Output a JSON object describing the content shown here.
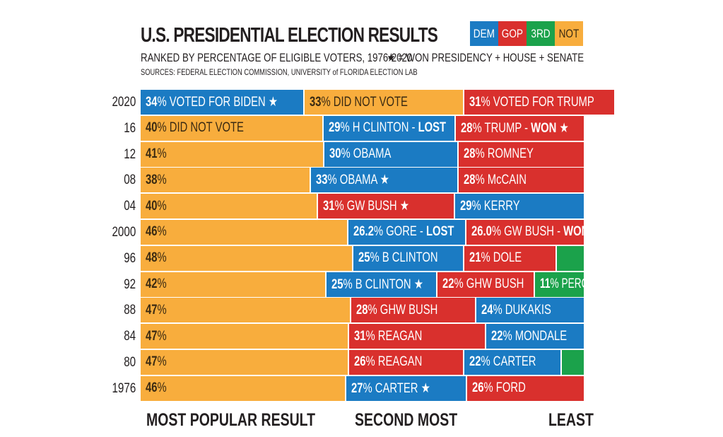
{
  "title": "U.S. PRESIDENTIAL ELECTION RESULTS",
  "subtitle": "RANKED BY PERCENTAGE OF ELIGIBLE VOTERS, 1976-2020",
  "sources": "SOURCES: FEDERAL ELECTION COMMISSION, UNIVERSITY of FLORIDA ELECTION LAB",
  "legend": [
    {
      "key": "DEM",
      "label": "DEM",
      "color": "#1b7bc3"
    },
    {
      "key": "GOP",
      "label": "GOP",
      "color": "#d9302d"
    },
    {
      "key": "3RD",
      "label": "3RD",
      "color": "#1ba24b"
    },
    {
      "key": "NOT",
      "label": "NOT",
      "color": "#f8ad3d"
    }
  ],
  "star_note": "★ = WON PRESIDENCY + HOUSE + SENATE",
  "footer": {
    "first": "MOST POPULAR RESULT",
    "second": "SECOND MOST",
    "least": "LEAST"
  },
  "chart_data": {
    "type": "bar",
    "orientation": "horizontal-stacked",
    "unit": "% of eligible voters",
    "rows": [
      {
        "year": "2020",
        "segments": [
          {
            "party": "DEM",
            "pct": "34",
            "text": "VOTED FOR BIDEN",
            "star": true
          },
          {
            "party": "NOT",
            "pct": "33",
            "text": "DID NOT VOTE"
          },
          {
            "party": "GOP",
            "pct": "31",
            "text": "VOTED FOR TRUMP"
          }
        ]
      },
      {
        "year": "16",
        "segments": [
          {
            "party": "NOT",
            "pct": "40",
            "text": "DID NOT VOTE"
          },
          {
            "party": "DEM",
            "pct": "29",
            "text": "H CLINTON - ",
            "suffix": "LOST"
          },
          {
            "party": "GOP",
            "pct": "28",
            "text": "TRUMP - ",
            "suffix": "WON",
            "star": true
          }
        ]
      },
      {
        "year": "12",
        "segments": [
          {
            "party": "NOT",
            "pct": "41",
            "text": ""
          },
          {
            "party": "DEM",
            "pct": "30",
            "text": "OBAMA"
          },
          {
            "party": "GOP",
            "pct": "28",
            "text": "ROMNEY"
          }
        ]
      },
      {
        "year": "08",
        "segments": [
          {
            "party": "NOT",
            "pct": "38",
            "text": ""
          },
          {
            "party": "DEM",
            "pct": "33",
            "text": "OBAMA",
            "star": true
          },
          {
            "party": "GOP",
            "pct": "28",
            "text": "McCAIN"
          }
        ]
      },
      {
        "year": "04",
        "segments": [
          {
            "party": "NOT",
            "pct": "40",
            "text": ""
          },
          {
            "party": "GOP",
            "pct": "31",
            "text": "GW BUSH",
            "star": true
          },
          {
            "party": "DEM",
            "pct": "29",
            "text": "KERRY"
          }
        ]
      },
      {
        "year": "2000",
        "segments": [
          {
            "party": "NOT",
            "pct": "46",
            "text": ""
          },
          {
            "party": "DEM",
            "pct": "26.2",
            "text": "GORE - ",
            "suffix": "LOST"
          },
          {
            "party": "GOP",
            "pct": "26.0",
            "text": "GW BUSH - ",
            "suffix": "WON"
          }
        ]
      },
      {
        "year": "96",
        "segments": [
          {
            "party": "NOT",
            "pct": "48",
            "text": ""
          },
          {
            "party": "DEM",
            "pct": "25",
            "text": "B CLINTON"
          },
          {
            "party": "GOP",
            "pct": "21",
            "text": "DOLE"
          },
          {
            "party": "3RD",
            "pct": null
          }
        ]
      },
      {
        "year": "92",
        "segments": [
          {
            "party": "NOT",
            "pct": "42",
            "text": ""
          },
          {
            "party": "DEM",
            "pct": "25",
            "text": "B CLINTON",
            "star": true
          },
          {
            "party": "GOP",
            "pct": "22",
            "text": "GHW BUSH"
          },
          {
            "party": "3RD",
            "pct": "11",
            "text": "PEROT"
          }
        ]
      },
      {
        "year": "88",
        "segments": [
          {
            "party": "NOT",
            "pct": "47",
            "text": ""
          },
          {
            "party": "GOP",
            "pct": "28",
            "text": "GHW BUSH"
          },
          {
            "party": "DEM",
            "pct": "24",
            "text": "DUKAKIS"
          }
        ]
      },
      {
        "year": "84",
        "segments": [
          {
            "party": "NOT",
            "pct": "47",
            "text": ""
          },
          {
            "party": "GOP",
            "pct": "31",
            "text": "REAGAN"
          },
          {
            "party": "DEM",
            "pct": "22",
            "text": "MONDALE"
          }
        ]
      },
      {
        "year": "80",
        "segments": [
          {
            "party": "NOT",
            "pct": "47",
            "text": ""
          },
          {
            "party": "GOP",
            "pct": "26",
            "text": "REAGAN"
          },
          {
            "party": "DEM",
            "pct": "22",
            "text": "CARTER"
          },
          {
            "party": "3RD",
            "pct": null
          }
        ]
      },
      {
        "year": "1976",
        "segments": [
          {
            "party": "NOT",
            "pct": "46",
            "text": ""
          },
          {
            "party": "DEM",
            "pct": "27",
            "text": "CARTER",
            "star": true
          },
          {
            "party": "GOP",
            "pct": "26",
            "text": "FORD"
          }
        ]
      }
    ]
  }
}
